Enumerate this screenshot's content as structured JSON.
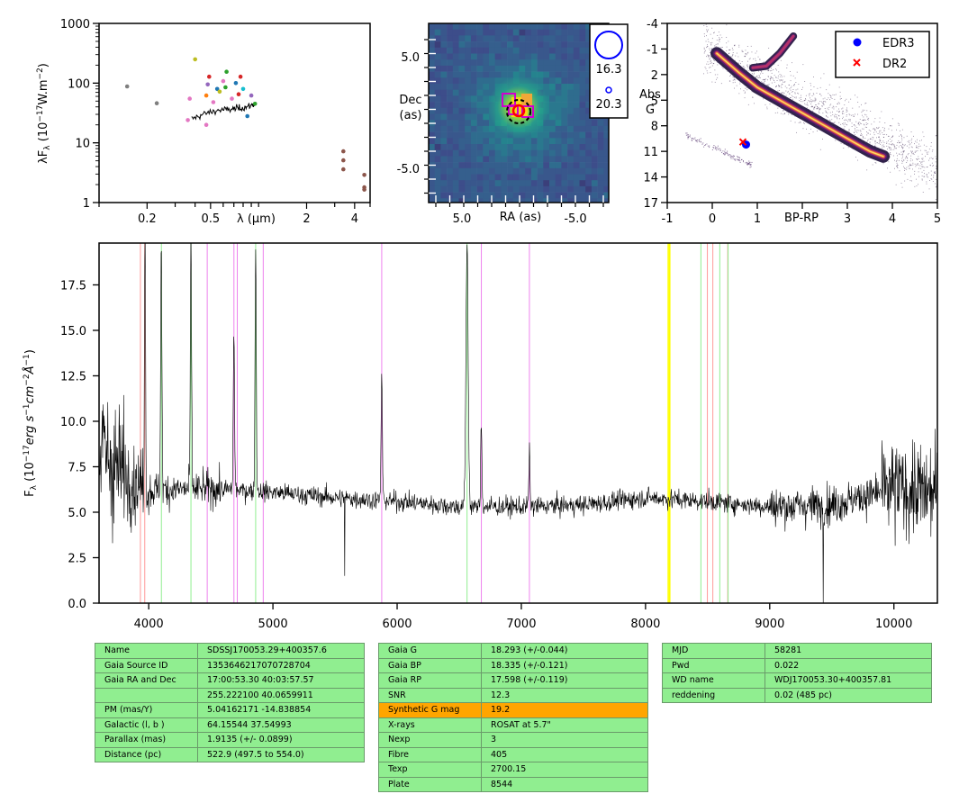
{
  "chart_data": [
    {
      "type": "scatter",
      "name": "sed",
      "ylabel": "λF_λ (10^-17 W.m^-2)",
      "xlabel": "λ (μm)",
      "xscale": "log",
      "yscale": "log",
      "xlim": [
        0.1,
        5
      ],
      "ylim": [
        1,
        1000
      ],
      "xticks": [
        "0.2",
        "0.5",
        "2",
        "4"
      ],
      "yticks": [
        "1",
        "10",
        "100",
        "1000"
      ],
      "photometry": [
        {
          "x": 0.15,
          "y": 88,
          "color": "#7f7f7f"
        },
        {
          "x": 0.23,
          "y": 46,
          "color": "#7f7f7f"
        },
        {
          "x": 0.36,
          "y": 24,
          "color": "#e377c2"
        },
        {
          "x": 0.37,
          "y": 55,
          "color": "#e377c2"
        },
        {
          "x": 0.4,
          "y": 250,
          "color": "#bcbd22"
        },
        {
          "x": 0.47,
          "y": 20,
          "color": "#e377c2"
        },
        {
          "x": 0.47,
          "y": 62,
          "color": "#ff7f0e"
        },
        {
          "x": 0.48,
          "y": 95,
          "color": "#9467bd"
        },
        {
          "x": 0.49,
          "y": 128,
          "color": "#d62728"
        },
        {
          "x": 0.52,
          "y": 48,
          "color": "#e377c2"
        },
        {
          "x": 0.55,
          "y": 80,
          "color": "#1f77b4"
        },
        {
          "x": 0.57,
          "y": 72,
          "color": "#bcbd22"
        },
        {
          "x": 0.6,
          "y": 108,
          "color": "#e377c2"
        },
        {
          "x": 0.62,
          "y": 85,
          "color": "#2ca02c"
        },
        {
          "x": 0.63,
          "y": 155,
          "color": "#2ca02c"
        },
        {
          "x": 0.68,
          "y": 55,
          "color": "#e377c2"
        },
        {
          "x": 0.72,
          "y": 100,
          "color": "#1f77b4"
        },
        {
          "x": 0.75,
          "y": 65,
          "color": "#d62728"
        },
        {
          "x": 0.77,
          "y": 128,
          "color": "#d62728"
        },
        {
          "x": 0.8,
          "y": 80,
          "color": "#17becf"
        },
        {
          "x": 0.85,
          "y": 28,
          "color": "#1f77b4"
        },
        {
          "x": 0.9,
          "y": 62,
          "color": "#9467bd"
        },
        {
          "x": 0.95,
          "y": 45,
          "color": "#2ca02c"
        },
        {
          "x": 3.4,
          "y": 7.2,
          "color": "#8c564b"
        },
        {
          "x": 3.4,
          "y": 5.1,
          "color": "#8c564b"
        },
        {
          "x": 3.4,
          "y": 3.6,
          "color": "#8c564b"
        },
        {
          "x": 4.6,
          "y": 2.9,
          "color": "#8c564b"
        },
        {
          "x": 4.6,
          "y": 1.8,
          "color": "#8c564b"
        },
        {
          "x": 4.6,
          "y": 1.65,
          "color": "#8c564b"
        }
      ],
      "spectrum_line": {
        "x": [
          0.38,
          0.45,
          0.55,
          0.65,
          0.75,
          0.85,
          0.95
        ],
        "y": [
          25,
          30,
          35,
          36,
          38,
          40,
          45
        ],
        "color": "#000000"
      }
    },
    {
      "type": "heatmap",
      "name": "image",
      "xlabel": "RA (as)",
      "ylabel": "Dec\n(as)",
      "xticks": [
        "5.0",
        "-5.0"
      ],
      "yticks": [
        "5.0",
        "0",
        "-5.0"
      ],
      "xlim": [
        8,
        -8
      ],
      "ylim": [
        -8,
        8
      ],
      "legend": [
        {
          "label": "16.3",
          "marker": "circle-large",
          "color": "#0000ff"
        },
        {
          "label": "20.3",
          "marker": "circle-small",
          "color": "#0000ff"
        }
      ]
    },
    {
      "type": "scatter",
      "name": "hr-diagram",
      "xlabel": "BP-RP",
      "ylabel": "Abs\nG",
      "xlim": [
        -1,
        5
      ],
      "ylim": [
        17,
        -4
      ],
      "xticks": [
        "-1",
        "0",
        "1",
        "3",
        "4",
        "5"
      ],
      "yticks": [
        "-4",
        "-1",
        "2",
        "5",
        "8",
        "11",
        "14",
        "17"
      ],
      "legend": [
        {
          "label": "EDR3",
          "marker": "circle",
          "color": "#0000ff"
        },
        {
          "label": "DR2",
          "marker": "x",
          "color": "#ff0000"
        }
      ],
      "points": [
        {
          "series": "EDR3",
          "x": 0.75,
          "y": 10.2
        },
        {
          "series": "DR2",
          "x": 0.68,
          "y": 9.9
        }
      ]
    },
    {
      "type": "line",
      "name": "spectrum",
      "xlabel": "",
      "ylabel": "F_λ (10^-17 erg s^-1 cm^-2 Å^-1)",
      "xlim": [
        3600,
        10350
      ],
      "ylim": [
        0,
        19.8
      ],
      "xticks": [
        "4000",
        "5000",
        "6000",
        "7000",
        "8000",
        "9000",
        "10000"
      ],
      "yticks": [
        "0.0",
        "2.5",
        "5.0",
        "7.5",
        "10.0",
        "12.5",
        "15.0",
        "17.5"
      ],
      "continuum": {
        "x": [
          3600,
          3800,
          4000,
          4500,
          5000,
          5500,
          6000,
          6500,
          7000,
          7500,
          8000,
          8500,
          9000,
          9500,
          10000,
          10350
        ],
        "y": [
          8.5,
          7,
          6.2,
          6.3,
          6.1,
          5.8,
          5.6,
          5.3,
          5.3,
          5.4,
          5.8,
          5.6,
          5.3,
          5.4,
          6.3,
          6.0
        ]
      },
      "emission_lines": [
        {
          "x": 3970,
          "height": 19.8
        },
        {
          "x": 4101,
          "height": 19.8
        },
        {
          "x": 4340,
          "height": 19.8
        },
        {
          "x": 4686,
          "height": 15
        },
        {
          "x": 4861,
          "height": 19.8
        },
        {
          "x": 5876,
          "height": 12.7
        },
        {
          "x": 6563,
          "height": 19.8
        },
        {
          "x": 6678,
          "height": 10
        },
        {
          "x": 7065,
          "height": 8.2
        }
      ],
      "absorption_dips": [
        {
          "x": 5577,
          "depth": 1.5
        },
        {
          "x": 9430,
          "depth": 0
        }
      ],
      "marker_lines": [
        {
          "x": 3933,
          "color": "#ff9999"
        },
        {
          "x": 3968,
          "color": "#ff9999"
        },
        {
          "x": 4102,
          "color": "#90ee90"
        },
        {
          "x": 4340,
          "color": "#90ee90"
        },
        {
          "x": 4471,
          "color": "#ee82ee"
        },
        {
          "x": 4686,
          "color": "#ee82ee"
        },
        {
          "x": 4713,
          "color": "#ee82ee"
        },
        {
          "x": 4861,
          "color": "#90ee90"
        },
        {
          "x": 4922,
          "color": "#ee82ee"
        },
        {
          "x": 5876,
          "color": "#ee82ee"
        },
        {
          "x": 6563,
          "color": "#90ee90"
        },
        {
          "x": 6678,
          "color": "#ee82ee"
        },
        {
          "x": 7065,
          "color": "#ee82ee"
        },
        {
          "x": 8183,
          "color": "#ffff00"
        },
        {
          "x": 8195,
          "color": "#ffff00"
        },
        {
          "x": 8446,
          "color": "#90ee90"
        },
        {
          "x": 8498,
          "color": "#ff9999"
        },
        {
          "x": 8542,
          "color": "#ff9999"
        },
        {
          "x": 8598,
          "color": "#90ee90"
        },
        {
          "x": 8662,
          "color": "#ff9999"
        },
        {
          "x": 8665,
          "color": "#90ee90"
        }
      ]
    }
  ],
  "tables": {
    "left": [
      [
        "Name",
        "SDSSJ170053.29+400357.6"
      ],
      [
        "Gaia Source ID",
        "1353646217070728704"
      ],
      [
        "Gaia RA and Dec",
        "17:00:53.30    40:03:57.57"
      ],
      [
        "",
        "255.222100    40.0659911"
      ],
      [
        "PM (mas/Y)",
        "5.04162171    -14.838854"
      ],
      [
        "Galactic (l, b )",
        "64.15544    37.54993"
      ],
      [
        "Parallax (mas)",
        "1.9135 (+/- 0.0899)"
      ],
      [
        "Distance (pc)",
        "522.9 (497.5 to 554.0)"
      ]
    ],
    "middle": [
      [
        "Gaia G",
        "18.293 (+/-0.044)"
      ],
      [
        "Gaia BP",
        "18.335 (+/-0.121)"
      ],
      [
        "Gaia RP",
        "17.598 (+/-0.119)"
      ],
      [
        "SNR",
        "12.3"
      ],
      [
        "Synthetic G mag",
        "19.2"
      ],
      [
        "X-rays",
        "ROSAT at 5.7\""
      ],
      [
        "Nexp",
        "3"
      ],
      [
        "Fibre",
        "405"
      ],
      [
        "Texp",
        "2700.15"
      ],
      [
        "Plate",
        "8544"
      ]
    ],
    "right": [
      [
        "MJD",
        "58281"
      ],
      [
        "Pwd",
        "0.022"
      ],
      [
        "WD name",
        "WDJ170053.30+400357.81"
      ],
      [
        "reddening",
        "0.02 (485 pc)"
      ]
    ],
    "highlight_color": "#ffa500",
    "cell_color": "#90ee90"
  }
}
